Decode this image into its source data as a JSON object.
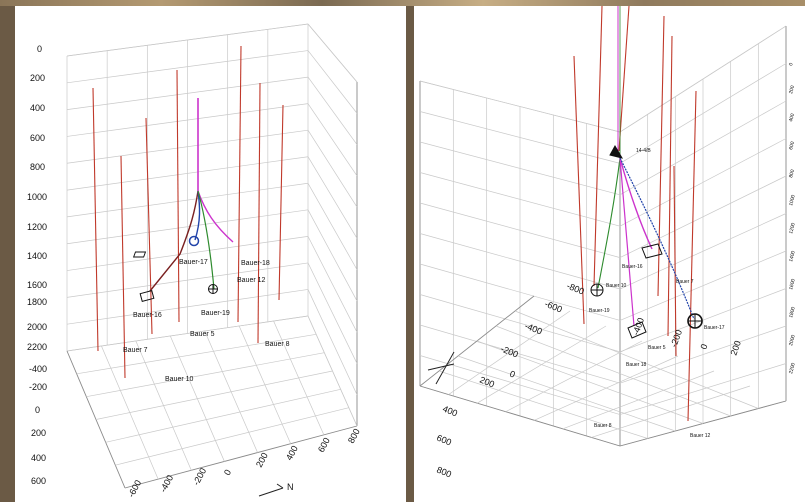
{
  "chart_data": [
    {
      "type": "scatter",
      "panel": "left",
      "depth_ticks": [
        "0",
        "200",
        "400",
        "600",
        "800",
        "1000",
        "1200",
        "1400",
        "1600",
        "1800",
        "2000",
        "2200"
      ],
      "y_ticks": [
        "-400",
        "-200",
        "0",
        "200",
        "400",
        "600"
      ],
      "x_ticks": [
        "-600",
        "-400",
        "-200",
        "0",
        "200",
        "400",
        "600",
        "800"
      ],
      "axis_arrow_label": "N",
      "wells": [
        "Bauer-17",
        "Bauer-18",
        "Bauer 12",
        "Bauer-19",
        "Bauer-16",
        "Bauer 5",
        "Bauer 7",
        "Bauer 8",
        "Bauer 10"
      ],
      "grid": true
    },
    {
      "type": "scatter",
      "panel": "right",
      "floor_ticks": [
        "800",
        "600",
        "400",
        "200",
        "0",
        "-200",
        "-400",
        "-600",
        "-800"
      ],
      "floor_ticks_2": [
        "-400",
        "-200",
        "0",
        "200",
        "400"
      ],
      "right_ticks": [
        "0",
        "200",
        "400",
        "600",
        "800",
        "1000",
        "1200",
        "1400",
        "1600",
        "1800",
        "2000",
        "2200"
      ],
      "wells": [
        "Bauer-16",
        "Bauer 7",
        "Bauer 10",
        "Bauer-19",
        "Bauer-17",
        "Bauer 5",
        "Bauer 18",
        "Bauer 8",
        "Bauer 12"
      ],
      "well_head_label": "14-4/B",
      "grid": true
    }
  ],
  "colors": {
    "casing": "#c0392b",
    "trajectory_green": "#2e8b2e",
    "trajectory_magenta": "#cc33cc",
    "trajectory_blue": "#2244aa",
    "trajectory_dark": "#222222"
  }
}
